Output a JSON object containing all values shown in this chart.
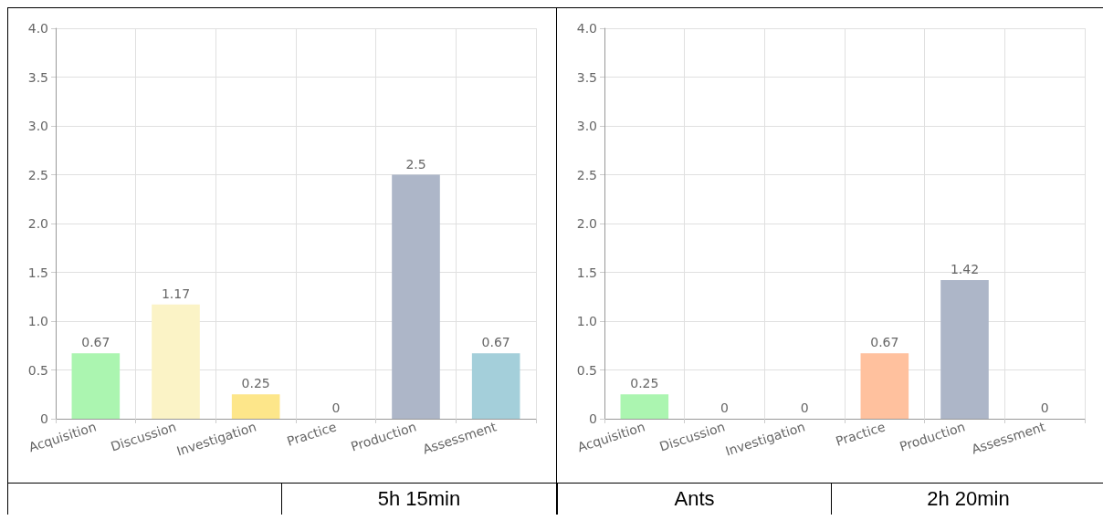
{
  "chart_data": [
    {
      "type": "bar",
      "categories": [
        "Acquisition",
        "Discussion",
        "Investigation",
        "Practice",
        "Production",
        "Assessment"
      ],
      "values": [
        0.67,
        1.17,
        0.25,
        0,
        2.5,
        0.67
      ],
      "colors": [
        "#abf5b0",
        "#fbf3c6",
        "#fde68a",
        "#ffc19e",
        "#adb6c8",
        "#a4cfda"
      ],
      "ylim": [
        0,
        4
      ],
      "yticks": [
        0,
        0.5,
        {
          "value": 1,
          "label": "1.0"
        },
        1.5,
        {
          "value": 2,
          "label": "2.0"
        },
        2.5,
        {
          "value": 3,
          "label": "3.0"
        },
        3.5,
        {
          "value": 4,
          "label": "4.0"
        }
      ],
      "grid": true,
      "data_labels": true,
      "annotations": [
        "5h 15min"
      ]
    },
    {
      "type": "bar",
      "categories": [
        "Acquisition",
        "Discussion",
        "Investigation",
        "Practice",
        "Production",
        "Assessment"
      ],
      "values": [
        0.25,
        0,
        0,
        0.67,
        1.42,
        0
      ],
      "colors": [
        "#abf5b0",
        "#fbf3c6",
        "#fde68a",
        "#ffc19e",
        "#adb6c8",
        "#a4cfda"
      ],
      "ylim": [
        0,
        4
      ],
      "yticks": [
        0,
        0.5,
        {
          "value": 1,
          "label": "1.0"
        },
        1.5,
        {
          "value": 2,
          "label": "2.0"
        },
        2.5,
        {
          "value": 3,
          "label": "3.0"
        },
        3.5,
        {
          "value": 4,
          "label": "4.0"
        }
      ],
      "grid": true,
      "data_labels": true,
      "annotations": [
        "Ants",
        "2h 20min"
      ]
    }
  ]
}
